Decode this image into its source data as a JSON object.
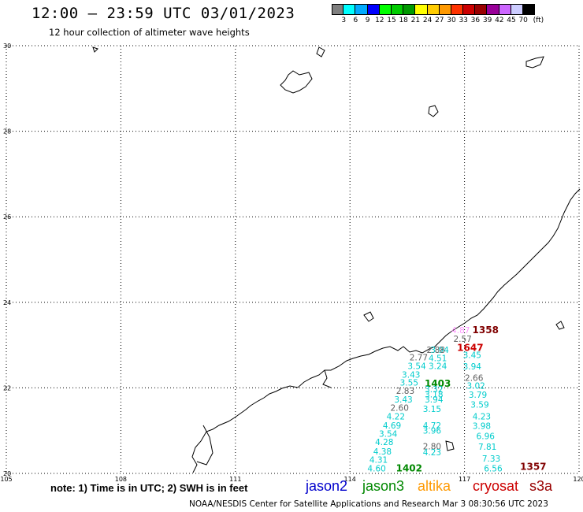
{
  "header": {
    "title": "12:00 – 23:59 UTC 03/01/2023",
    "subtitle": "12 hour collection of altimeter wave heights"
  },
  "scale": {
    "colors": [
      "#7f7f7f",
      "#00ffff",
      "#00aaff",
      "#0000ff",
      "#00ff00",
      "#00cc00",
      "#009900",
      "#ffff00",
      "#ffcc00",
      "#ff9900",
      "#ff3300",
      "#cc0000",
      "#990000",
      "#990099",
      "#cc66ff",
      "#ccccff",
      "#000000"
    ],
    "labels": [
      "3",
      "6",
      "9",
      "12",
      "15",
      "18",
      "21",
      "24",
      "27",
      "30",
      "33",
      "36",
      "39",
      "42",
      "45",
      "70",
      "(ft)"
    ]
  },
  "axes": {
    "lon_labels": [
      "105",
      "108",
      "111",
      "114",
      "117",
      "120"
    ],
    "lat_labels": [
      "30",
      "28",
      "26",
      "24",
      "22",
      "20"
    ]
  },
  "chart_data": {
    "type": "scatter",
    "title": "12:00 – 23:59 UTC 03/01/2023",
    "xlim": [
      105,
      120
    ],
    "ylim": [
      20,
      30
    ],
    "grid": true,
    "labels": [
      {
        "text": "4.87",
        "lon": 116.9,
        "lat": 23.28,
        "color": "#ff99ff"
      },
      {
        "text": "1358",
        "lon": 117.55,
        "lat": 23.28,
        "color": "#800000"
      },
      {
        "text": "2.57",
        "lon": 116.95,
        "lat": 23.08,
        "color": "#606060"
      },
      {
        "text": "3.94",
        "lon": 116.35,
        "lat": 22.82,
        "color": "#00cccc"
      },
      {
        "text": "2.88",
        "lon": 116.25,
        "lat": 22.82,
        "color": "#606060"
      },
      {
        "text": "1647",
        "lon": 117.15,
        "lat": 22.86,
        "color": "#cc0000"
      },
      {
        "text": "2.77",
        "lon": 115.8,
        "lat": 22.64,
        "color": "#606060"
      },
      {
        "text": "4.51",
        "lon": 116.3,
        "lat": 22.62,
        "color": "#00cccc"
      },
      {
        "text": "3.45",
        "lon": 117.2,
        "lat": 22.7,
        "color": "#00cccc"
      },
      {
        "text": "3.54",
        "lon": 115.75,
        "lat": 22.44,
        "color": "#00cccc"
      },
      {
        "text": "3.24",
        "lon": 116.3,
        "lat": 22.44,
        "color": "#00cccc"
      },
      {
        "text": "3.94",
        "lon": 117.2,
        "lat": 22.43,
        "color": "#00cccc"
      },
      {
        "text": "3.43",
        "lon": 115.6,
        "lat": 22.24,
        "color": "#00cccc"
      },
      {
        "text": "2.66",
        "lon": 117.25,
        "lat": 22.16,
        "color": "#606060"
      },
      {
        "text": "3.55",
        "lon": 115.55,
        "lat": 22.05,
        "color": "#00cccc"
      },
      {
        "text": "1403",
        "lon": 116.3,
        "lat": 22.03,
        "color": "#008800"
      },
      {
        "text": "3.02",
        "lon": 117.3,
        "lat": 21.98,
        "color": "#00cccc"
      },
      {
        "text": "2.83",
        "lon": 115.45,
        "lat": 21.86,
        "color": "#606060"
      },
      {
        "text": "3.32",
        "lon": 116.2,
        "lat": 21.9,
        "color": "#00cccc"
      },
      {
        "text": "3.18",
        "lon": 116.2,
        "lat": 21.78,
        "color": "#00cccc"
      },
      {
        "text": "3.79",
        "lon": 117.35,
        "lat": 21.77,
        "color": "#00cccc"
      },
      {
        "text": "3.43",
        "lon": 115.4,
        "lat": 21.66,
        "color": "#00cccc"
      },
      {
        "text": "3.94",
        "lon": 116.2,
        "lat": 21.66,
        "color": "#00cccc"
      },
      {
        "text": "3.59",
        "lon": 117.4,
        "lat": 21.54,
        "color": "#00cccc"
      },
      {
        "text": "2.60",
        "lon": 115.3,
        "lat": 21.46,
        "color": "#606060"
      },
      {
        "text": "3.15",
        "lon": 116.15,
        "lat": 21.44,
        "color": "#00cccc"
      },
      {
        "text": "4.22",
        "lon": 115.2,
        "lat": 21.26,
        "color": "#00cccc"
      },
      {
        "text": "4.23",
        "lon": 117.45,
        "lat": 21.26,
        "color": "#00cccc"
      },
      {
        "text": "4.69",
        "lon": 115.1,
        "lat": 21.05,
        "color": "#00cccc"
      },
      {
        "text": "4.72",
        "lon": 116.15,
        "lat": 21.05,
        "color": "#00cccc"
      },
      {
        "text": "3.98",
        "lon": 117.45,
        "lat": 21.04,
        "color": "#00cccc"
      },
      {
        "text": "3.54",
        "lon": 115.0,
        "lat": 20.86,
        "color": "#00cccc"
      },
      {
        "text": "3.96",
        "lon": 116.15,
        "lat": 20.93,
        "color": "#00cccc"
      },
      {
        "text": "6.96",
        "lon": 117.55,
        "lat": 20.8,
        "color": "#00cccc"
      },
      {
        "text": "4.28",
        "lon": 114.9,
        "lat": 20.66,
        "color": "#00cccc"
      },
      {
        "text": "2.80",
        "lon": 116.15,
        "lat": 20.56,
        "color": "#606060"
      },
      {
        "text": "7.81",
        "lon": 117.6,
        "lat": 20.55,
        "color": "#00cccc"
      },
      {
        "text": "4.38",
        "lon": 114.85,
        "lat": 20.44,
        "color": "#00cccc"
      },
      {
        "text": "4.23",
        "lon": 116.15,
        "lat": 20.42,
        "color": "#00cccc"
      },
      {
        "text": "4.31",
        "lon": 114.75,
        "lat": 20.25,
        "color": "#00cccc"
      },
      {
        "text": "7.33",
        "lon": 117.7,
        "lat": 20.28,
        "color": "#00cccc"
      },
      {
        "text": "4.60",
        "lon": 114.7,
        "lat": 20.05,
        "color": "#00cccc"
      },
      {
        "text": "1402",
        "lon": 115.55,
        "lat": 20.05,
        "color": "#008800"
      },
      {
        "text": "6.56",
        "lon": 117.75,
        "lat": 20.05,
        "color": "#00cccc"
      },
      {
        "text": "1357",
        "lon": 118.8,
        "lat": 20.08,
        "color": "#800000"
      }
    ]
  },
  "footer": {
    "note": "note:  1) Time is in UTC;  2) SWH is in feet",
    "satellites": [
      {
        "name": "jason2",
        "color": "#0000cc"
      },
      {
        "name": "jason3",
        "color": "#008800"
      },
      {
        "name": "altika",
        "color": "#ff9900"
      },
      {
        "name": "cryosat",
        "color": "#cc0000"
      },
      {
        "name": "s3a",
        "color": "#990000"
      }
    ],
    "credit": "NOAA/NESDIS Center for Satellite Applications and Research     Mar  3 08:30:56 UTC 2023"
  }
}
